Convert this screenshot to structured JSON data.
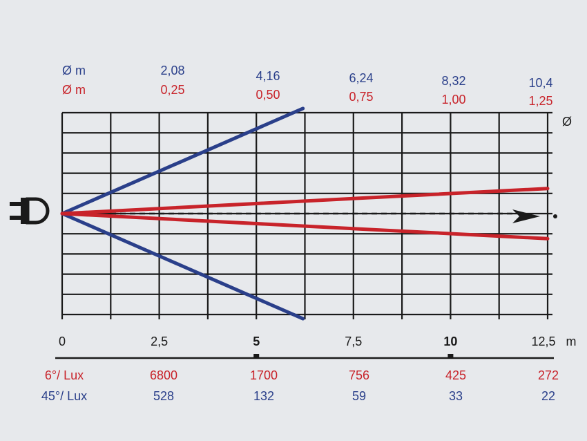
{
  "chart_data": {
    "type": "line",
    "title": "",
    "xlabel": "",
    "ylabel": "",
    "x_unit": "m",
    "diameter_symbol": "Ø",
    "x_ticks": [
      "0",
      "2,5",
      "5",
      "7,5",
      "10",
      "12,5"
    ],
    "xlim": [
      0,
      12.5
    ],
    "diameter_rows": [
      {
        "label": "Ø m",
        "color": "#2a3f8a",
        "values": [
          "2,08",
          "4,16",
          "6,24",
          "8,32",
          "10,4"
        ]
      },
      {
        "label": "Ø m",
        "color": "#c8232a",
        "values": [
          "0,25",
          "0,50",
          "0,75",
          "1,00",
          "1,25"
        ]
      }
    ],
    "series": [
      {
        "angle": "45°",
        "color": "#2a3f8a",
        "x": [
          0,
          6.2
        ],
        "half_spread": [
          0,
          2.6
        ]
      },
      {
        "angle": "6°",
        "color": "#c8232a",
        "x": [
          0,
          12.5
        ],
        "half_spread": [
          0,
          0.62
        ]
      }
    ],
    "lux_rows": [
      {
        "label": "6°/ Lux",
        "color": "#c8232a",
        "values": [
          "6800",
          "1700",
          "756",
          "425",
          "272"
        ]
      },
      {
        "label": "45°/ Lux",
        "color": "#2a3f8a",
        "values": [
          "528",
          "132",
          "59",
          "33",
          "22"
        ]
      }
    ],
    "grid": true,
    "axis_arrow": true
  }
}
